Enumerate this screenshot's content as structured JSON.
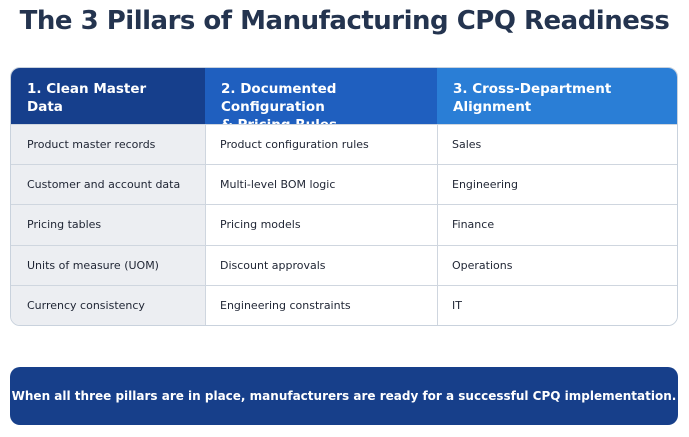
{
  "title": "The 3 Pillars of Manufacturing CPQ Readiness",
  "columns": [
    {
      "header_line1": "1. Clean Master",
      "header_line2": "Data",
      "items": [
        "Product master records",
        "Customer and account data",
        "Pricing tables",
        "Units of measure (UOM)",
        "Currency consistency"
      ]
    },
    {
      "header_line1": "2. Documented Configuration",
      "header_line2": "& Pricing Rules",
      "items": [
        "Product configuration rules",
        "Multi-level BOM logic",
        "Pricing models",
        "Discount approvals",
        "Engineering constraints"
      ]
    },
    {
      "header_line1": "3. Cross-Department",
      "header_line2": "Alignment",
      "items": [
        "Sales",
        "Engineering",
        "Finance",
        "Operations",
        "IT"
      ]
    }
  ],
  "banner": "When all three pillars are in place, manufacturers are ready for a successful CPQ implementation.",
  "colors": {
    "title": "#24344f",
    "header_col1": "#163f8c",
    "header_col2": "#1f5fbf",
    "header_col3": "#2a7ed6",
    "banner": "#173f8a"
  }
}
